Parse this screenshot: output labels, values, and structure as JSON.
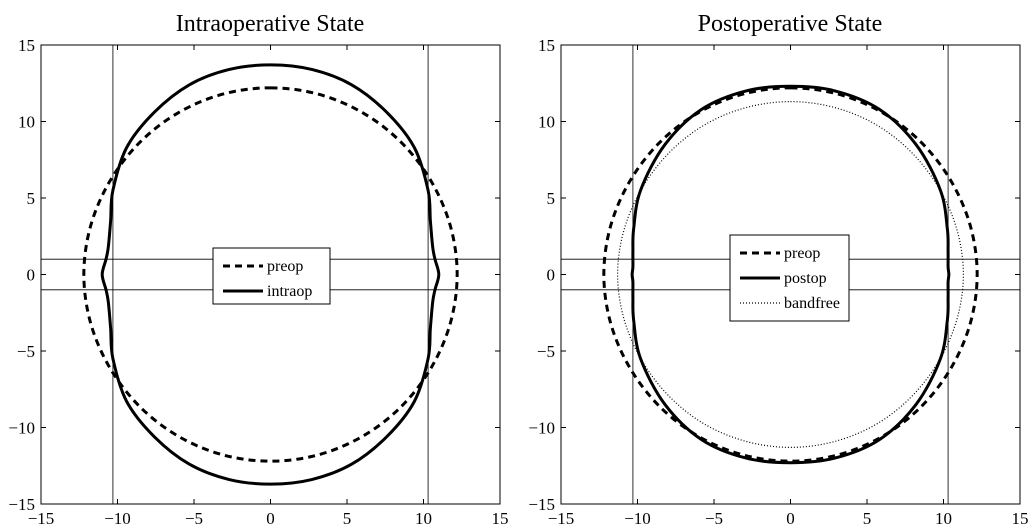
{
  "chart_data": [
    {
      "type": "line",
      "title": "Intraoperative State",
      "xlabel": "",
      "ylabel": "",
      "xlim": [
        -15,
        15
      ],
      "ylim": [
        -15,
        15
      ],
      "xticks": [
        -15,
        -10,
        -5,
        0,
        5,
        10,
        15
      ],
      "yticks": [
        -15,
        -10,
        -5,
        0,
        5,
        10,
        15
      ],
      "tick_labels": [
        "−15",
        "−10",
        "−5",
        "0",
        "5",
        "10",
        "15"
      ],
      "grid": false,
      "reference_lines": {
        "vertical_x": [
          -10.3,
          10.3
        ],
        "horizontal_y": [
          -1,
          1
        ]
      },
      "legend": {
        "placement": "center",
        "entries": [
          "preop",
          "intraop"
        ]
      },
      "series": [
        {
          "name": "preop",
          "style": "dashed",
          "x": [
            0,
            3.11,
            6.03,
            8.55,
            10.5,
            11.76,
            12.2,
            11.76,
            10.5,
            8.55,
            6.03,
            3.11,
            0,
            -3.11,
            -6.03,
            -8.55,
            -10.5,
            -11.76,
            -12.2,
            -11.76,
            -10.5,
            -8.55,
            -6.03,
            -3.11,
            0
          ],
          "y": [
            12.2,
            11.79,
            10.57,
            8.63,
            6.1,
            3.16,
            0,
            -3.16,
            -6.1,
            -8.63,
            -10.57,
            -11.79,
            -12.2,
            -11.79,
            -10.57,
            -8.63,
            -6.1,
            -3.16,
            0,
            3.16,
            6.1,
            8.63,
            10.57,
            11.79,
            12.2
          ]
        },
        {
          "name": "intraop",
          "style": "solid",
          "x": [
            0,
            2.7,
            5.3,
            7.6,
            9.4,
            10.3,
            10.45,
            10.6,
            10.75,
            11.0,
            10.75,
            10.6,
            10.45,
            10.3,
            9.4,
            7.6,
            5.3,
            2.7,
            0,
            -2.7,
            -5.3,
            -7.6,
            -9.4,
            -10.3,
            -10.45,
            -10.6,
            -10.75,
            -11.0,
            -10.75,
            -10.6,
            -10.45,
            -10.3,
            -9.4,
            -7.6,
            -5.3,
            -2.7,
            0
          ],
          "y": [
            13.7,
            13.4,
            12.4,
            10.6,
            8.3,
            5.5,
            3.5,
            1.8,
            1.0,
            0,
            -1.0,
            -1.8,
            -3.5,
            -5.5,
            -8.3,
            -10.6,
            -12.4,
            -13.4,
            -13.7,
            -13.4,
            -12.4,
            -10.6,
            -8.3,
            -5.5,
            -3.5,
            -1.8,
            -1.0,
            0,
            1.0,
            1.8,
            3.5,
            5.5,
            8.3,
            10.6,
            12.4,
            13.4,
            13.7
          ]
        }
      ]
    },
    {
      "type": "line",
      "title": "Postoperative State",
      "xlabel": "",
      "ylabel": "",
      "xlim": [
        -15,
        15
      ],
      "ylim": [
        -15,
        15
      ],
      "xticks": [
        -15,
        -10,
        -5,
        0,
        5,
        10,
        15
      ],
      "yticks": [
        -15,
        -10,
        -5,
        0,
        5,
        10,
        15
      ],
      "tick_labels": [
        "−15",
        "−10",
        "−5",
        "0",
        "5",
        "10",
        "15"
      ],
      "grid": false,
      "reference_lines": {
        "vertical_x": [
          -10.3,
          10.3
        ],
        "horizontal_y": [
          -1,
          1
        ]
      },
      "legend": {
        "placement": "center",
        "entries": [
          "preop",
          "postop",
          "bandfree"
        ]
      },
      "series": [
        {
          "name": "preop",
          "style": "dashed",
          "x": [
            0,
            3.11,
            6.03,
            8.55,
            10.5,
            11.76,
            12.2,
            11.76,
            10.5,
            8.55,
            6.03,
            3.11,
            0,
            -3.11,
            -6.03,
            -8.55,
            -10.5,
            -11.76,
            -12.2,
            -11.76,
            -10.5,
            -8.55,
            -6.03,
            -3.11,
            0
          ],
          "y": [
            12.2,
            11.79,
            10.57,
            8.63,
            6.1,
            3.16,
            0,
            -3.16,
            -6.1,
            -8.63,
            -10.57,
            -11.79,
            -12.2,
            -11.79,
            -10.57,
            -8.63,
            -6.1,
            -3.16,
            0,
            3.16,
            6.1,
            8.63,
            10.57,
            11.79,
            12.2
          ]
        },
        {
          "name": "postop",
          "style": "solid",
          "x": [
            0,
            2.9,
            5.8,
            8.2,
            9.8,
            10.25,
            10.3,
            10.3,
            10.35,
            10.3,
            10.3,
            10.25,
            9.8,
            8.2,
            5.8,
            2.9,
            0,
            -2.9,
            -5.8,
            -8.2,
            -9.8,
            -10.25,
            -10.3,
            -10.3,
            -10.35,
            -10.3,
            -10.3,
            -10.25,
            -9.8,
            -8.2,
            -5.8,
            -2.9,
            0
          ],
          "y": [
            12.3,
            12.0,
            10.8,
            8.5,
            5.5,
            3.0,
            1.5,
            0.5,
            0,
            -0.5,
            -1.5,
            -3.0,
            -5.5,
            -8.5,
            -10.8,
            -12.0,
            -12.3,
            -12.0,
            -10.8,
            -8.5,
            -5.5,
            -3.0,
            -1.5,
            -0.5,
            0,
            0.5,
            1.5,
            3.0,
            5.5,
            8.5,
            10.8,
            12.0,
            12.3
          ]
        },
        {
          "name": "bandfree",
          "style": "dotted",
          "x": [
            0,
            2.9,
            5.6,
            7.9,
            9.7,
            10.88,
            11.3,
            10.88,
            9.7,
            7.9,
            5.6,
            2.9,
            0,
            -2.9,
            -5.6,
            -7.9,
            -9.7,
            -10.88,
            -11.3,
            -10.88,
            -9.7,
            -7.9,
            -5.6,
            -2.9,
            0
          ],
          "y": [
            11.3,
            10.91,
            9.79,
            7.99,
            5.65,
            2.92,
            0,
            -2.92,
            -5.65,
            -7.99,
            -9.79,
            -10.91,
            -11.3,
            -10.91,
            -9.79,
            -7.99,
            -5.65,
            -2.92,
            0,
            2.92,
            5.65,
            7.99,
            9.79,
            10.91,
            11.3
          ]
        }
      ]
    }
  ]
}
